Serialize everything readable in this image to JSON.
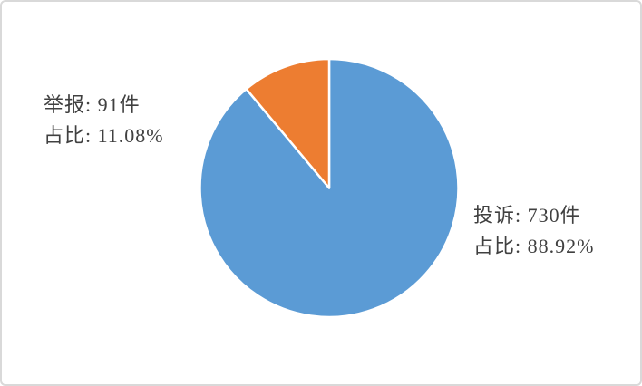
{
  "frame": {
    "background_color": "#FFFFFF",
    "border_color": "#D9D9D9"
  },
  "chart_data": {
    "type": "pie",
    "title": "",
    "legend_position": "none",
    "start_angle_deg": 0,
    "direction": "clockwise",
    "slice_border_color": "#FFFFFF",
    "categories": [
      "投诉",
      "举报"
    ],
    "series": [
      {
        "name": "投诉",
        "value": 730,
        "unit": "件",
        "percent": 88.92,
        "color": "#5B9BD5"
      },
      {
        "name": "举报",
        "value": 91,
        "unit": "件",
        "percent": 11.08,
        "color": "#ED7D31"
      }
    ]
  },
  "labels": {
    "report": {
      "line1": "举报: 91件",
      "line2": "占比: 11.08%"
    },
    "complaint": {
      "line1": "投诉: 730件",
      "line2": "占比: 88.92%"
    }
  }
}
